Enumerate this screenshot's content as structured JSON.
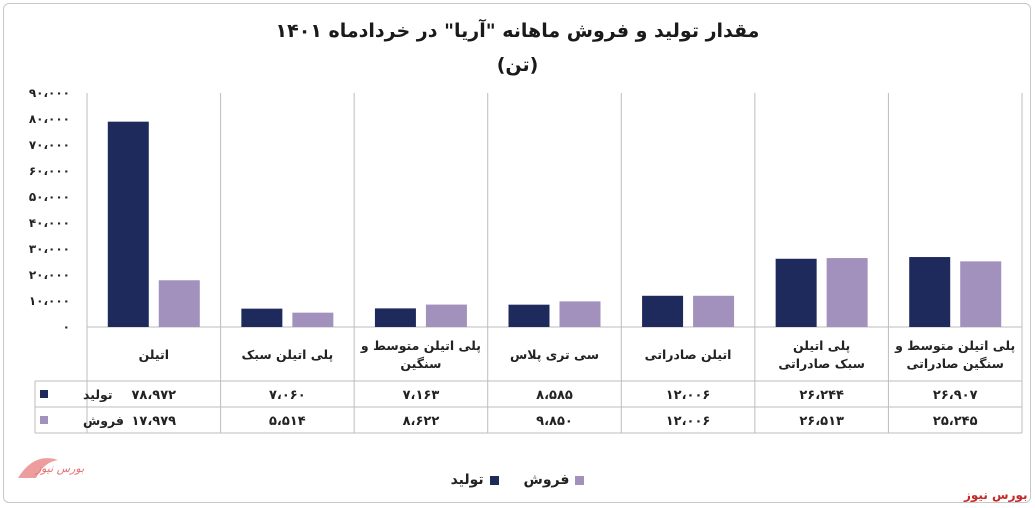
{
  "chart_data": {
    "type": "bar",
    "title": "مقدار تولید و فروش ماهانه \"آریا\" در خردادماه ۱۴۰۱",
    "subtitle": "(تن)",
    "categories": [
      "اتیلن",
      "پلی اتیلن سبک",
      "پلی اتیلن متوسط و سنگین",
      "سی تری پلاس",
      "اتیلن صادراتی",
      "پلی اتیلن سبک صادراتی",
      "پلی اتیلن متوسط و سنگین صادراتی"
    ],
    "series": [
      {
        "name": "تولید",
        "color": "#1f2a5c",
        "values": [
          78972,
          7060,
          7163,
          8585,
          12006,
          26244,
          26907
        ],
        "labels": [
          "۷۸،۹۷۲",
          "۷،۰۶۰",
          "۷،۱۶۳",
          "۸،۵۸۵",
          "۱۲،۰۰۶",
          "۲۶،۲۴۴",
          "۲۶،۹۰۷"
        ]
      },
      {
        "name": "فروش",
        "color": "#a391bd",
        "values": [
          17979,
          5514,
          8622,
          9850,
          12006,
          26513,
          25245
        ],
        "labels": [
          "۱۷،۹۷۹",
          "۵،۵۱۴",
          "۸،۶۲۲",
          "۹،۸۵۰",
          "۱۲،۰۰۶",
          "۲۶،۵۱۳",
          "۲۵،۲۴۵"
        ]
      }
    ],
    "ylim": [
      0,
      90000
    ],
    "yticks": [
      0,
      10000,
      20000,
      30000,
      40000,
      50000,
      60000,
      70000,
      80000,
      90000
    ],
    "ytick_labels": [
      "۰",
      "۱۰،۰۰۰",
      "۲۰،۰۰۰",
      "۳۰،۰۰۰",
      "۴۰،۰۰۰",
      "۵۰،۰۰۰",
      "۶۰،۰۰۰",
      "۷۰،۰۰۰",
      "۸۰،۰۰۰",
      "۹۰،۰۰۰"
    ],
    "grid": false,
    "legend_position": "bottom-center",
    "data_table": true
  },
  "watermark": "بورس نیوز",
  "logo_text": "بورس نیوز"
}
